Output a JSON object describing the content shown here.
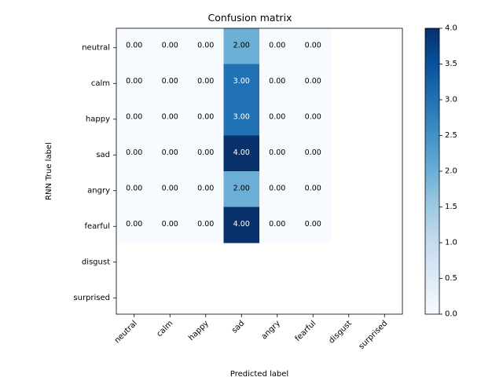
{
  "chart_data": {
    "type": "heatmap",
    "title": "Confusion matrix",
    "xlabel": "Predicted label",
    "ylabel": "RNN True label",
    "x_categories": [
      "neutral",
      "calm",
      "happy",
      "sad",
      "angry",
      "fearful",
      "disgust",
      "surprised"
    ],
    "y_categories": [
      "neutral",
      "calm",
      "happy",
      "sad",
      "angry",
      "fearful",
      "disgust",
      "surprised"
    ],
    "rows_with_data": 6,
    "cols_with_data": 6,
    "values": [
      [
        0,
        0,
        0,
        2,
        0,
        0
      ],
      [
        0,
        0,
        0,
        3,
        0,
        0
      ],
      [
        0,
        0,
        0,
        3,
        0,
        0
      ],
      [
        0,
        0,
        0,
        4,
        0,
        0
      ],
      [
        0,
        0,
        0,
        2,
        0,
        0
      ],
      [
        0,
        0,
        0,
        4,
        0,
        0
      ]
    ],
    "value_labels": [
      [
        "0.00",
        "0.00",
        "0.00",
        "2.00",
        "0.00",
        "0.00"
      ],
      [
        "0.00",
        "0.00",
        "0.00",
        "3.00",
        "0.00",
        "0.00"
      ],
      [
        "0.00",
        "0.00",
        "0.00",
        "3.00",
        "0.00",
        "0.00"
      ],
      [
        "0.00",
        "0.00",
        "0.00",
        "4.00",
        "0.00",
        "0.00"
      ],
      [
        "0.00",
        "0.00",
        "0.00",
        "2.00",
        "0.00",
        "0.00"
      ],
      [
        "0.00",
        "0.00",
        "0.00",
        "4.00",
        "0.00",
        "0.00"
      ]
    ],
    "colorbar": {
      "min": 0.0,
      "max": 4.0,
      "colormap": "Blues",
      "ticks": [
        0.0,
        0.5,
        1.0,
        1.5,
        2.0,
        2.5,
        3.0,
        3.5,
        4.0
      ],
      "tick_labels": [
        "0.0",
        "0.5",
        "1.0",
        "1.5",
        "2.0",
        "2.5",
        "3.0",
        "3.5",
        "4.0"
      ]
    },
    "colors": {
      "cmap_low": "#f7fbff",
      "cmap_high": "#08306b",
      "text_dark": "#000000",
      "text_light": "#ffffff"
    }
  }
}
